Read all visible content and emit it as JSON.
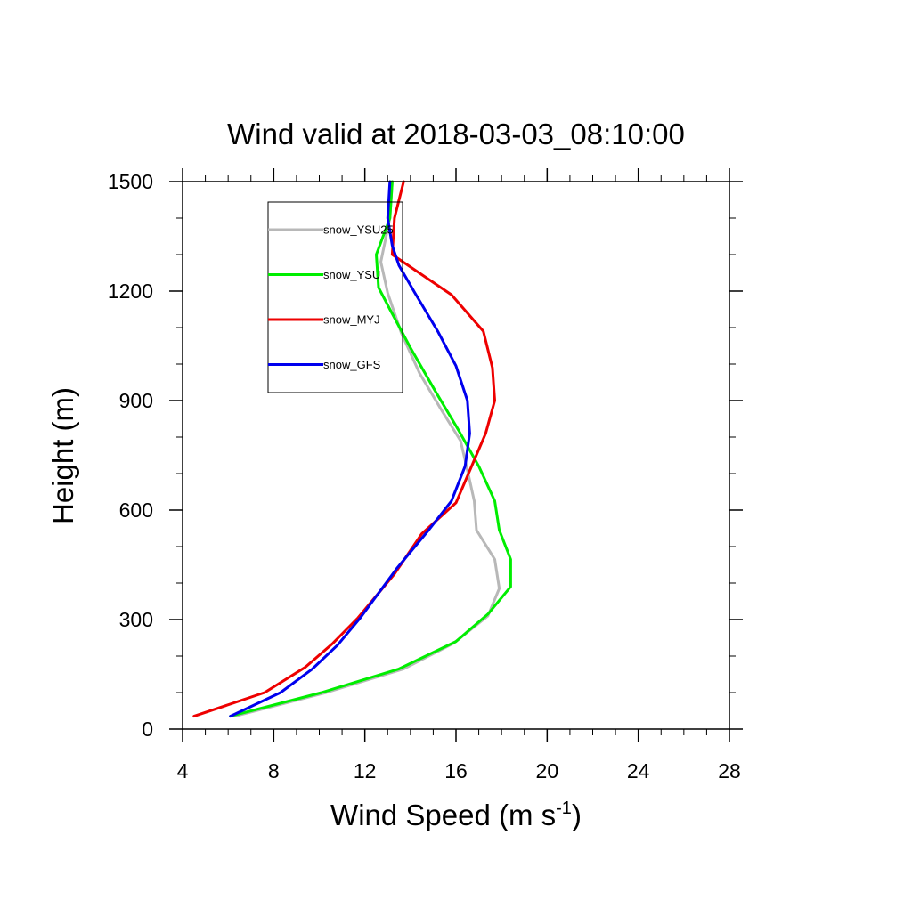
{
  "chart_data": {
    "type": "line",
    "title": "Wind valid at 2018-03-03_08:10:00",
    "xlabel": {
      "main": "Wind Speed (m s",
      "sup": "-1",
      "close": ")"
    },
    "ylabel": "Height (m)",
    "xlim": [
      4,
      28
    ],
    "ylim": [
      0,
      1500
    ],
    "xticks": [
      4,
      8,
      12,
      16,
      20,
      24,
      28
    ],
    "yticks": [
      0,
      300,
      600,
      900,
      1200,
      1500
    ],
    "x_minor_step": 1,
    "y_minor_step": 100,
    "grid": false,
    "legend_position": "top-left",
    "series": [
      {
        "name": "snow_YSU25",
        "color": "#b8b8b8",
        "points": [
          [
            6.3,
            35
          ],
          [
            10.3,
            100
          ],
          [
            13.7,
            165
          ],
          [
            15.9,
            235
          ],
          [
            17.4,
            310
          ],
          [
            17.9,
            385
          ],
          [
            17.7,
            465
          ],
          [
            16.9,
            545
          ],
          [
            16.8,
            625
          ],
          [
            16.5,
            710
          ],
          [
            16.2,
            790
          ],
          [
            15.4,
            870
          ],
          [
            14.4,
            975
          ],
          [
            13.6,
            1085
          ],
          [
            13.0,
            1195
          ],
          [
            12.7,
            1280
          ],
          [
            13.1,
            1400
          ],
          [
            13.2,
            1500
          ]
        ]
      },
      {
        "name": "snow_YSU",
        "color": "#00ee00",
        "points": [
          [
            6.1,
            35
          ],
          [
            10.1,
            100
          ],
          [
            13.5,
            165
          ],
          [
            16.0,
            240
          ],
          [
            17.4,
            315
          ],
          [
            18.4,
            390
          ],
          [
            18.4,
            465
          ],
          [
            17.9,
            545
          ],
          [
            17.7,
            625
          ],
          [
            17.0,
            720
          ],
          [
            16.1,
            820
          ],
          [
            15.1,
            925
          ],
          [
            14.0,
            1045
          ],
          [
            13.1,
            1150
          ],
          [
            12.6,
            1210
          ],
          [
            12.5,
            1300
          ],
          [
            13.1,
            1400
          ],
          [
            13.2,
            1500
          ]
        ]
      },
      {
        "name": "snow_MYJ",
        "color": "#ee0000",
        "points": [
          [
            4.5,
            35
          ],
          [
            7.6,
            100
          ],
          [
            9.4,
            170
          ],
          [
            10.6,
            235
          ],
          [
            11.7,
            305
          ],
          [
            13.3,
            425
          ],
          [
            14.5,
            535
          ],
          [
            16.0,
            620
          ],
          [
            17.3,
            810
          ],
          [
            17.7,
            900
          ],
          [
            17.6,
            990
          ],
          [
            17.2,
            1090
          ],
          [
            15.8,
            1190
          ],
          [
            13.2,
            1300
          ],
          [
            13.3,
            1400
          ],
          [
            13.7,
            1500
          ]
        ]
      },
      {
        "name": "snow_GFS",
        "color": "#0000ee",
        "points": [
          [
            6.1,
            35
          ],
          [
            8.3,
            100
          ],
          [
            9.7,
            165
          ],
          [
            10.8,
            230
          ],
          [
            11.8,
            305
          ],
          [
            13.4,
            440
          ],
          [
            14.8,
            545
          ],
          [
            15.8,
            625
          ],
          [
            16.4,
            720
          ],
          [
            16.6,
            810
          ],
          [
            16.5,
            900
          ],
          [
            16.0,
            995
          ],
          [
            15.2,
            1090
          ],
          [
            14.2,
            1195
          ],
          [
            13.5,
            1270
          ],
          [
            13.2,
            1325
          ],
          [
            13.0,
            1400
          ],
          [
            13.1,
            1500
          ]
        ]
      }
    ]
  }
}
